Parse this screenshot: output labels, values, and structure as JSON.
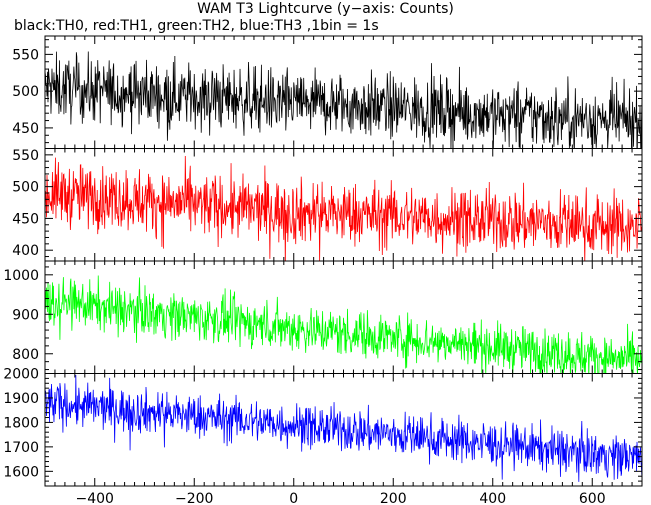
{
  "chart": {
    "title": "WAM T3 Lightcurve (y−axis: Counts)",
    "subtitle": "black:TH0, red:TH1, green:TH2, blue:TH3 ,1bin = 1s"
  },
  "chart_data": {
    "type": "line",
    "title": "WAM T3 Lightcurve (y−axis: Counts)",
    "subtitle": "black:TH0, red:TH1, green:TH2, blue:TH3 ,1bin = 1s",
    "ylabel": "Counts",
    "bin_size_s": 1,
    "xlim": [
      -500,
      700
    ],
    "x_ticks": [
      -400,
      -200,
      0,
      200,
      400,
      600
    ],
    "x_tick_labels": [
      "−400",
      "−200",
      "0",
      "200",
      "400",
      "600"
    ],
    "panels": [
      {
        "name": "TH0",
        "color": "#000000",
        "ylim": [
          422,
          575
        ],
        "y_ticks": [
          450,
          500,
          550
        ],
        "trend": [
          {
            "x": -500,
            "y": 505
          },
          {
            "x": 0,
            "y": 485
          },
          {
            "x": 700,
            "y": 458
          }
        ],
        "noise_amplitude": 22
      },
      {
        "name": "TH1",
        "color": "#ff0000",
        "ylim": [
          383,
          560
        ],
        "y_ticks": [
          400,
          450,
          500,
          550
        ],
        "trend": [
          {
            "x": -500,
            "y": 490
          },
          {
            "x": 0,
            "y": 460
          },
          {
            "x": 700,
            "y": 437
          }
        ],
        "noise_amplitude": 25
      },
      {
        "name": "TH2",
        "color": "#00ff00",
        "ylim": [
          750,
          1035
        ],
        "y_ticks": [
          800,
          900,
          1000
        ],
        "trend": [
          {
            "x": -500,
            "y": 935
          },
          {
            "x": 0,
            "y": 865
          },
          {
            "x": 700,
            "y": 782
          }
        ],
        "noise_amplitude": 30
      },
      {
        "name": "TH3",
        "color": "#0000ff",
        "ylim": [
          1540,
          2000
        ],
        "y_ticks": [
          1600,
          1700,
          1800,
          1900,
          2000
        ],
        "trend": [
          {
            "x": -500,
            "y": 1880
          },
          {
            "x": 0,
            "y": 1790
          },
          {
            "x": 700,
            "y": 1655
          }
        ],
        "noise_amplitude": 45
      }
    ]
  }
}
